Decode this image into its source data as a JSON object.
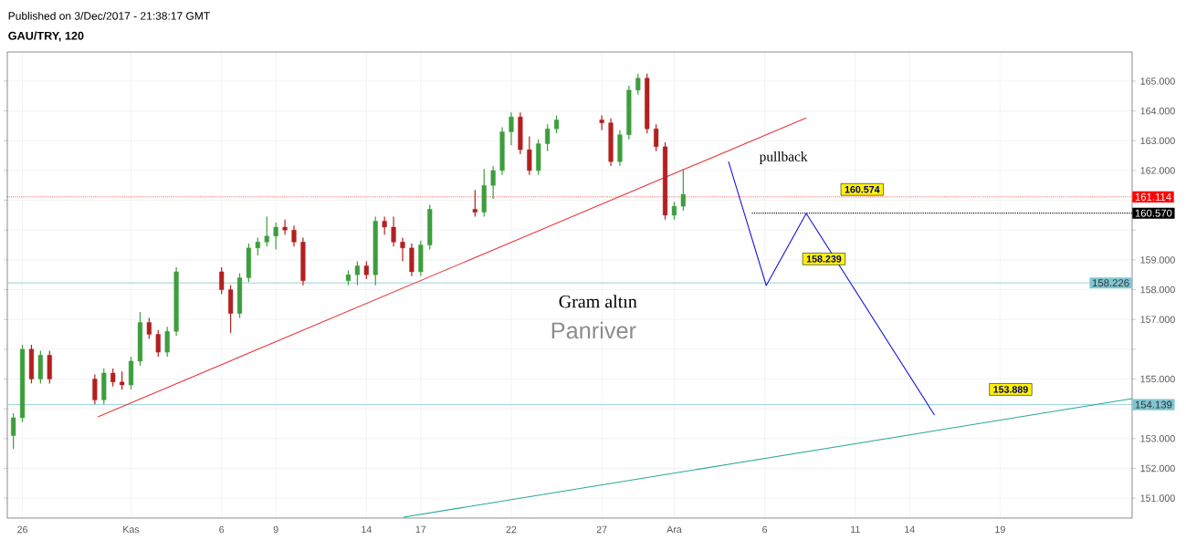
{
  "chart_data": {
    "type": "candlestick",
    "title": "GAU/TRY, 120",
    "subtitle": "Published on 3/Dec/2017 - 21:38:17 GMT",
    "x": [
      "2017-10-25T12:00",
      "2017-10-26T00:00",
      "2017-10-26T12:00",
      "2017-10-27T00:00",
      "2017-10-27T12:00",
      "2017-10-30T00:00",
      "2017-10-30T12:00",
      "2017-10-31T00:00",
      "2017-10-31T12:00",
      "2017-11-01T00:00",
      "2017-11-01T12:00",
      "2017-11-02T00:00",
      "2017-11-02T12:00",
      "2017-11-03T00:00",
      "2017-11-03T12:00",
      "2017-11-06T00:00",
      "2017-11-06T12:00",
      "2017-11-07T00:00",
      "2017-11-07T12:00",
      "2017-11-08T00:00",
      "2017-11-08T12:00",
      "2017-11-09T00:00",
      "2017-11-09T12:00",
      "2017-11-10T00:00",
      "2017-11-10T12:00",
      "2017-11-13T00:00",
      "2017-11-13T12:00",
      "2017-11-14T00:00",
      "2017-11-14T12:00",
      "2017-11-15T00:00",
      "2017-11-15T12:00",
      "2017-11-16T00:00",
      "2017-11-16T12:00",
      "2017-11-17T00:00",
      "2017-11-17T12:00",
      "2017-11-20T00:00",
      "2017-11-20T12:00",
      "2017-11-21T00:00",
      "2017-11-21T12:00",
      "2017-11-22T00:00",
      "2017-11-22T12:00",
      "2017-11-23T00:00",
      "2017-11-23T12:00",
      "2017-11-24T00:00",
      "2017-11-24T12:00",
      "2017-11-27T00:00",
      "2017-11-27T12:00",
      "2017-11-28T00:00",
      "2017-11-28T12:00",
      "2017-11-29T00:00",
      "2017-11-29T12:00",
      "2017-11-30T00:00",
      "2017-11-30T12:00",
      "2017-12-01T00:00",
      "2017-12-01T12:00"
    ],
    "ohlc": [
      [
        153.1,
        153.85,
        152.65,
        153.7
      ],
      [
        153.7,
        156.15,
        153.55,
        156.0
      ],
      [
        156.0,
        156.15,
        154.85,
        155.0
      ],
      [
        155.0,
        155.95,
        154.85,
        155.8
      ],
      [
        155.8,
        155.95,
        154.85,
        155.0
      ],
      [
        155.0,
        155.15,
        154.15,
        154.3
      ],
      [
        154.3,
        155.35,
        154.15,
        155.2
      ],
      [
        155.2,
        155.35,
        154.75,
        154.9
      ],
      [
        154.9,
        155.25,
        154.65,
        154.8
      ],
      [
        154.8,
        155.75,
        154.65,
        155.6
      ],
      [
        155.6,
        157.25,
        155.45,
        156.9
      ],
      [
        156.9,
        157.05,
        156.35,
        156.5
      ],
      [
        156.5,
        156.65,
        155.75,
        155.9
      ],
      [
        155.9,
        156.75,
        155.75,
        156.6
      ],
      [
        156.6,
        158.75,
        156.45,
        158.6
      ],
      [
        158.6,
        158.75,
        157.85,
        158.0
      ],
      [
        158.0,
        158.15,
        156.55,
        157.2
      ],
      [
        157.2,
        158.55,
        157.05,
        158.4
      ],
      [
        158.4,
        159.55,
        158.25,
        159.4
      ],
      [
        159.4,
        159.75,
        159.15,
        159.6
      ],
      [
        159.6,
        160.45,
        159.45,
        159.8
      ],
      [
        159.8,
        160.25,
        159.35,
        160.1
      ],
      [
        160.1,
        160.35,
        159.85,
        160.0
      ],
      [
        160.0,
        160.15,
        159.45,
        159.6
      ],
      [
        159.6,
        159.75,
        158.15,
        158.3
      ],
      [
        158.3,
        158.65,
        158.15,
        158.5
      ],
      [
        158.5,
        158.95,
        158.15,
        158.8
      ],
      [
        158.8,
        158.95,
        158.35,
        158.5
      ],
      [
        158.5,
        160.45,
        158.15,
        160.3
      ],
      [
        160.3,
        160.45,
        159.85,
        160.1
      ],
      [
        160.1,
        160.45,
        159.45,
        159.6
      ],
      [
        159.6,
        159.75,
        158.95,
        159.4
      ],
      [
        159.4,
        159.55,
        158.45,
        158.6
      ],
      [
        158.6,
        159.65,
        158.45,
        159.5
      ],
      [
        159.5,
        160.85,
        159.35,
        160.7
      ],
      [
        160.7,
        161.35,
        160.45,
        160.6
      ],
      [
        160.6,
        162.05,
        160.45,
        161.5
      ],
      [
        161.5,
        162.15,
        161.05,
        162.0
      ],
      [
        162.0,
        163.45,
        161.85,
        163.3
      ],
      [
        163.3,
        163.95,
        162.85,
        163.8
      ],
      [
        163.8,
        163.95,
        162.55,
        162.7
      ],
      [
        162.7,
        163.15,
        161.85,
        162.0
      ],
      [
        162.0,
        163.05,
        161.85,
        162.9
      ],
      [
        162.9,
        163.55,
        162.65,
        163.4
      ],
      [
        163.4,
        163.85,
        163.25,
        163.7
      ],
      [
        163.7,
        163.85,
        163.35,
        163.6
      ],
      [
        163.6,
        163.75,
        162.15,
        162.3
      ],
      [
        162.3,
        163.35,
        162.15,
        163.2
      ],
      [
        163.2,
        164.85,
        163.05,
        164.7
      ],
      [
        164.7,
        165.25,
        164.55,
        165.1
      ],
      [
        165.1,
        165.25,
        163.25,
        163.4
      ],
      [
        163.4,
        163.55,
        162.65,
        162.8
      ],
      [
        162.8,
        162.95,
        160.35,
        160.5
      ],
      [
        160.5,
        160.95,
        160.35,
        160.8
      ],
      [
        160.8,
        162.05,
        160.65,
        161.2
      ]
    ],
    "colors": [
      "#3d9e3d",
      "#3d9e3d",
      "#b32020",
      "#3d9e3d",
      "#b32020",
      "#b32020",
      "#3d9e3d",
      "#b32020",
      "#b32020",
      "#3d9e3d",
      "#3d9e3d",
      "#b32020",
      "#b32020",
      "#3d9e3d",
      "#3d9e3d",
      "#b32020",
      "#b32020",
      "#3d9e3d",
      "#3d9e3d",
      "#3d9e3d",
      "#3d9e3d",
      "#3d9e3d",
      "#b32020",
      "#b32020",
      "#b32020",
      "#3d9e3d",
      "#3d9e3d",
      "#b32020",
      "#3d9e3d",
      "#b32020",
      "#b32020",
      "#b32020",
      "#b32020",
      "#3d9e3d",
      "#3d9e3d",
      "#b32020",
      "#3d9e3d",
      "#3d9e3d",
      "#3d9e3d",
      "#3d9e3d",
      "#b32020",
      "#b32020",
      "#3d9e3d",
      "#3d9e3d",
      "#3d9e3d",
      "#b32020",
      "#b32020",
      "#3d9e3d",
      "#3d9e3d",
      "#3d9e3d",
      "#b32020",
      "#b32020",
      "#b32020",
      "#3d9e3d",
      "#3d9e3d"
    ],
    "xlim": [
      "2017-10-25T04:00",
      "2017-12-26T07:00"
    ],
    "xticks": [
      {
        "value": "2017-10-26",
        "label": "26"
      },
      {
        "value": "2017-11-01",
        "label": "Kas"
      },
      {
        "value": "2017-11-06",
        "label": "6"
      },
      {
        "value": "2017-11-09",
        "label": "9"
      },
      {
        "value": "2017-11-14",
        "label": "14"
      },
      {
        "value": "2017-11-17",
        "label": "17"
      },
      {
        "value": "2017-11-22",
        "label": "22"
      },
      {
        "value": "2017-11-27",
        "label": "27"
      },
      {
        "value": "2017-12-01",
        "label": "Ara"
      },
      {
        "value": "2017-12-06",
        "label": "6"
      },
      {
        "value": "2017-12-11",
        "label": "11"
      },
      {
        "value": "2017-12-14",
        "label": "14"
      },
      {
        "value": "2017-12-19",
        "label": "19"
      }
    ],
    "ylim": [
      150.33,
      165.98
    ],
    "yticks": [
      {
        "value": 151,
        "label": "151.000"
      },
      {
        "value": 152,
        "label": "152.000"
      },
      {
        "value": 153,
        "label": "153.000"
      },
      {
        "value": 154,
        "label": null
      },
      {
        "value": 155,
        "label": "155.000"
      },
      {
        "value": 156,
        "label": null
      },
      {
        "value": 157,
        "label": "157.000"
      },
      {
        "value": 158,
        "label": "158.000"
      },
      {
        "value": 159,
        "label": "159.000"
      },
      {
        "value": 160,
        "label": null
      },
      {
        "value": 161,
        "label": null
      },
      {
        "value": 162,
        "label": "162.000"
      },
      {
        "value": 163,
        "label": "163.000"
      },
      {
        "value": 164,
        "label": "164.000"
      },
      {
        "value": 165,
        "label": "165.000"
      }
    ],
    "grid": true,
    "ref_lines": [
      {
        "axis": "y",
        "value": 161.114,
        "label": "161.114",
        "color": "#ff0000",
        "line_style": "dotted"
      },
      {
        "axis": "y",
        "value": 158.226,
        "label": "158.226",
        "color": "#7fc6d2"
      },
      {
        "axis": "y",
        "value": 154.139,
        "label": "154.139",
        "color": "#7fc6d2"
      }
    ],
    "series": [
      {
        "type": "line",
        "x": [
          "2017-10-30T04:00",
          "2017-12-08T07:00"
        ],
        "values": [
          153.73,
          163.77
        ],
        "color": "#e8383d"
      },
      {
        "type": "line",
        "x": [
          "2017-11-16T01:00",
          "2017-12-26T07:00"
        ],
        "values": [
          150.36,
          154.34
        ],
        "color": "#26a69a"
      },
      {
        "type": "line",
        "x": [
          "2017-12-04T00:00",
          "2017-12-06T02:00",
          "2017-12-08T07:00",
          "2017-12-15T09:00"
        ],
        "values": [
          162.3,
          158.14,
          160.56,
          153.79
        ],
        "color": "#1010e0"
      },
      {
        "type": "line",
        "x": [
          "2017-12-05T07:00",
          "2017-12-26T07:00"
        ],
        "values": [
          160.57,
          160.57
        ],
        "color": "#000000",
        "line_style": "dotted"
      }
    ],
    "annotations": [
      "pullback",
      "Gram altın",
      "Panriver",
      {
        "text": "160.570",
        "x": "2017-12-26T07:00",
        "y": 160.57
      },
      "160.574",
      "158.239",
      "153.889"
    ]
  }
}
